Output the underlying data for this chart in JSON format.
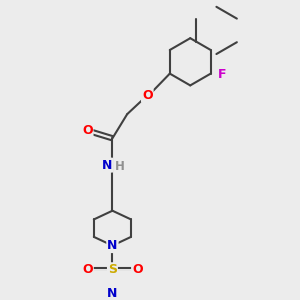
{
  "background_color": "#ececec",
  "bond_color": "#404040",
  "atom_colors": {
    "O": "#ff0000",
    "N": "#0000cc",
    "S": "#ccaa00",
    "F": "#cc00cc",
    "H": "#909090",
    "C": "#404040"
  },
  "figsize": [
    3.0,
    3.0
  ],
  "dpi": 100
}
